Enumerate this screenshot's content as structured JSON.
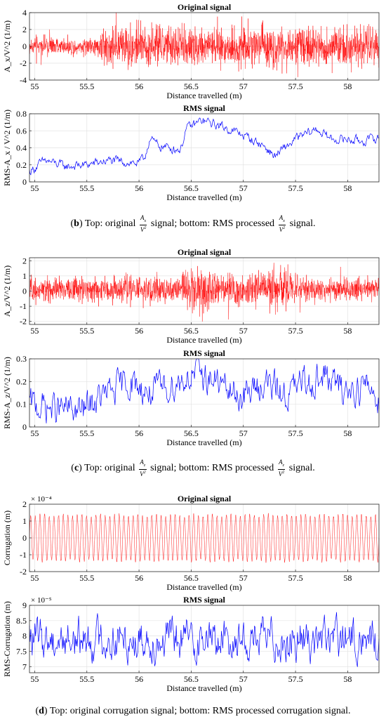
{
  "chart_data": [
    {
      "id": "b_top",
      "type": "line",
      "title": "Original signal",
      "xlabel": "Distance travelled (m)",
      "ylabel": "A_x/V^2 (1/m)",
      "xlim": [
        54.95,
        58.3
      ],
      "ylim": [
        -4,
        4
      ],
      "yticks": [
        -4,
        -2,
        0,
        2,
        4
      ],
      "exponent": "",
      "grid": true,
      "series": [
        {
          "color": "#ff0000",
          "profile": [
            [
              54.95,
              0.9
            ],
            [
              55.6,
              0.9
            ],
            [
              55.65,
              2.2
            ],
            [
              58.3,
              2.2
            ]
          ],
          "baseline": 0
        }
      ]
    },
    {
      "id": "b_bot",
      "type": "line",
      "title": "RMS signal",
      "xlabel": "Distance travelled (m)",
      "ylabel": "RMS-A_x / V^2 (1/m)",
      "xlim": [
        54.95,
        58.3
      ],
      "ylim": [
        0,
        0.8
      ],
      "yticks": [
        0,
        0.2,
        0.4,
        0.6,
        0.8
      ],
      "exponent": "",
      "grid": true,
      "series": [
        {
          "color": "#0000ff",
          "keypoints": [
            [
              54.95,
              0.12
            ],
            [
              55.1,
              0.25
            ],
            [
              55.3,
              0.18
            ],
            [
              55.5,
              0.2
            ],
            [
              55.7,
              0.25
            ],
            [
              56.0,
              0.22
            ],
            [
              56.05,
              0.27
            ],
            [
              56.1,
              0.5
            ],
            [
              56.2,
              0.42
            ],
            [
              56.4,
              0.38
            ],
            [
              56.45,
              0.62
            ],
            [
              56.6,
              0.72
            ],
            [
              56.8,
              0.65
            ],
            [
              57.0,
              0.55
            ],
            [
              57.2,
              0.42
            ],
            [
              57.3,
              0.3
            ],
            [
              57.5,
              0.5
            ],
            [
              57.7,
              0.62
            ],
            [
              57.85,
              0.5
            ],
            [
              58.0,
              0.5
            ],
            [
              58.15,
              0.48
            ],
            [
              58.3,
              0.52
            ]
          ],
          "noise": 0.04
        }
      ]
    },
    {
      "id": "c_top",
      "type": "line",
      "title": "Original signal",
      "xlabel": "Distance travelled (m)",
      "ylabel": "A_z/V^2 (1/m)",
      "xlim": [
        54.95,
        58.3
      ],
      "ylim": [
        -2.2,
        2.2
      ],
      "yticks": [
        -2,
        -1,
        0,
        1,
        2
      ],
      "exponent": "",
      "grid": true,
      "series": [
        {
          "color": "#ff0000",
          "profile": [
            [
              54.95,
              0.7
            ],
            [
              56.3,
              0.8
            ],
            [
              56.65,
              1.5
            ],
            [
              56.8,
              0.8
            ],
            [
              57.4,
              1.2
            ],
            [
              57.7,
              0.7
            ],
            [
              58.3,
              0.7
            ]
          ],
          "baseline": 0.1
        }
      ]
    },
    {
      "id": "c_bot",
      "type": "line",
      "title": "RMS signal",
      "xlabel": "Distance travelled (m)",
      "ylabel": "RMS-A_z/V^2 (1/m)",
      "xlim": [
        54.95,
        58.3
      ],
      "ylim": [
        0,
        0.3
      ],
      "yticks": [
        0,
        0.1,
        0.2,
        0.3
      ],
      "exponent": "",
      "grid": true,
      "series": [
        {
          "color": "#0000ff",
          "keypoints": [
            [
              54.95,
              0.1
            ],
            [
              55.2,
              0.08
            ],
            [
              55.45,
              0.07
            ],
            [
              55.6,
              0.12
            ],
            [
              55.9,
              0.2
            ],
            [
              56.1,
              0.15
            ],
            [
              56.3,
              0.18
            ],
            [
              56.55,
              0.24
            ],
            [
              56.75,
              0.2
            ],
            [
              56.85,
              0.16
            ],
            [
              57.0,
              0.13
            ],
            [
              57.2,
              0.2
            ],
            [
              57.4,
              0.14
            ],
            [
              57.6,
              0.2
            ],
            [
              57.8,
              0.22
            ],
            [
              57.95,
              0.16
            ],
            [
              58.2,
              0.18
            ],
            [
              58.3,
              0.12
            ]
          ],
          "noise": 0.05
        }
      ]
    },
    {
      "id": "d_top",
      "type": "line",
      "title": "Original signal",
      "xlabel": "Distance travelled (m)",
      "ylabel": "Corrugation (m)",
      "xlim": [
        54.95,
        58.3
      ],
      "ylim": [
        -2,
        2
      ],
      "yticks": [
        -2,
        -1,
        0,
        1,
        2
      ],
      "exponent": "× 10⁻⁴",
      "grid": true,
      "series": [
        {
          "color": "#ff0000",
          "wave": {
            "amplitude": 1.45,
            "cycles": 75,
            "jitter": 0.1
          }
        }
      ]
    },
    {
      "id": "d_bot",
      "type": "line",
      "title": "RMS signal",
      "xlabel": "Distance travelled (m)",
      "ylabel": "RMS-Corrugation (m)",
      "xlim": [
        54.95,
        58.3
      ],
      "ylim": [
        6.8,
        9
      ],
      "yticks": [
        7,
        7.5,
        8,
        8.5,
        9
      ],
      "exponent": "× 10⁻⁵",
      "grid": true,
      "series": [
        {
          "color": "#0000ff",
          "keypoints": [
            [
              54.95,
              7.9
            ],
            [
              58.3,
              7.9
            ]
          ],
          "noise": 0.5
        }
      ]
    }
  ],
  "x_ticks": [
    "55",
    "55.5",
    "56",
    "56.5",
    "57",
    "57.5",
    "58"
  ],
  "captions": [
    {
      "letter": "b",
      "pre": "Top: original",
      "frac1_num": "A",
      "frac1_num_sub": "x",
      "frac1_den": "V",
      "frac1_den_sup": "2",
      "mid": "signal; bottom: RMS processed",
      "post": "signal."
    },
    {
      "letter": "c",
      "pre": "Top: original",
      "frac1_num": "A",
      "frac1_num_sub": "z",
      "frac1_den": "V",
      "frac1_den_sup": "2",
      "mid": "signal; bottom: RMS processed",
      "post": "signal."
    },
    {
      "letter": "d",
      "text": "Top: original corrugation signal; bottom: RMS processed corrugation signal."
    }
  ]
}
